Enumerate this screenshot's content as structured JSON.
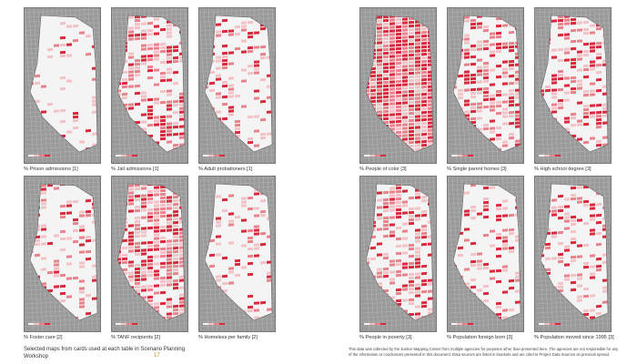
{
  "colors": {
    "background": "#ffffff",
    "map_gray": "#9a9a9a",
    "street_line": "#b8b8b8",
    "lot_white": "#f4f4f4",
    "data_light": "#f2c2c6",
    "data_mid": "#e8838c",
    "data_dark": "#d9293c",
    "page_number": "#c38a2c"
  },
  "maps": [
    {
      "caption": "% Prison admissions [1]",
      "intensity": 0.05
    },
    {
      "caption": "% Jail admissions [1]",
      "intensity": 0.45
    },
    {
      "caption": "% Adult probationers [1]",
      "intensity": 0.25
    },
    {
      "caption": "% Foster care [2]",
      "intensity": 0.2
    },
    {
      "caption": "% TANF recipients [2]",
      "intensity": 0.6
    },
    {
      "caption": "% Homeless per family [2]",
      "intensity": 0.15
    },
    {
      "caption": "% People of color [3]",
      "intensity": 0.95
    },
    {
      "caption": "% Single parent homes [3]",
      "intensity": 0.45
    },
    {
      "caption": "% High school degree [3]",
      "intensity": 0.35
    },
    {
      "caption": "% People in poverty [3]",
      "intensity": 0.4
    },
    {
      "caption": "% Population foreign born [3]",
      "intensity": 0.2
    },
    {
      "caption": "% Population moved since 1995 [3]",
      "intensity": 0.3
    }
  ],
  "footer": {
    "left_text": "Selected maps from cards used at each table in Scenario Planning Workshop",
    "page_number": "17",
    "right_text": "This data was collected by the Justice Mapping Center from multiple agencies for purposes other than presented here. The agencies are not responsible for any of the information or conclusions presented in this document. Data sources are listed in brackets and are cited to Project Data Sources on previous spread."
  }
}
